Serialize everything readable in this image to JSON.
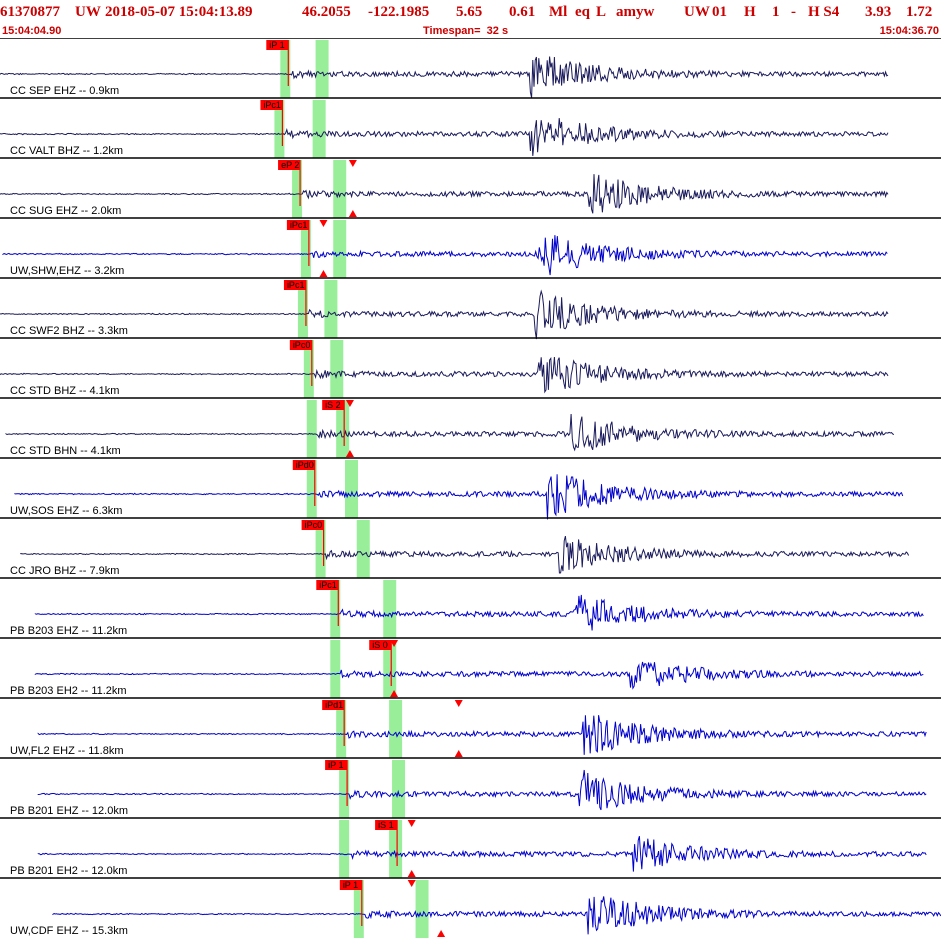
{
  "header": {
    "event_id": "61370877",
    "network": "UW",
    "datetime": "2018-05-07 15:04:13.89",
    "lat": "46.2055",
    "lon": "-122.1985",
    "depth": "5.65",
    "magnitude": "0.61",
    "mag_type": "Ml",
    "event_type": "eq",
    "location_flag": "L",
    "analyst": "amyw",
    "auth_net": "UW",
    "version": "01",
    "quality": "H",
    "count": "1",
    "dash": "-",
    "solution": "H S4",
    "v1": "3.93",
    "v2": "1.72",
    "start_time": "15:04:04.90",
    "timespan": "Timespan=  32 s",
    "end_time": "15:04:36.70"
  },
  "colors": {
    "header": "#cc0000",
    "trace_blue": "#0000cc",
    "trace_dark": "#1a1a5c",
    "pick_flag": "#ff0000",
    "window": "#99ee99",
    "grid": "#000000"
  },
  "chart_data": {
    "type": "seismogram",
    "x_unit": "s",
    "x_range": [
      0,
      32
    ],
    "traces": [
      {
        "label": "CC SEP EHZ -- 0.9km",
        "color": "dark",
        "start": 0.0,
        "end": 30.2,
        "p": 9.6,
        "s": 10.8,
        "arrival": 18.0,
        "amp": 1.0,
        "pick": "iP 1",
        "s_label": "",
        "markers": []
      },
      {
        "label": "CC VALT BHZ -- 1.2km",
        "color": "dark",
        "start": 0.0,
        "end": 30.2,
        "p": 9.4,
        "s": 10.7,
        "arrival": 18.0,
        "amp": 1.0,
        "pick": "iPc1",
        "s_label": "",
        "markers": []
      },
      {
        "label": "CC SUG EHZ -- 2.0km",
        "color": "dark",
        "start": 0.0,
        "end": 30.2,
        "p": 10.0,
        "s": 11.4,
        "arrival": 20.0,
        "amp": 0.9,
        "pick": "eP 2",
        "s_label": "",
        "markers": [
          {
            "t": 12.0,
            "dir": "down"
          },
          {
            "t": 12.0,
            "dir": "up"
          }
        ]
      },
      {
        "label": "UW,SHW,EHZ -- 3.2km",
        "color": "blue",
        "start": 0.1,
        "end": 30.2,
        "p": 10.3,
        "s": 11.4,
        "arrival": 18.3,
        "amp": 1.0,
        "pick": "iPc1",
        "s_label": "",
        "markers": [
          {
            "t": 11.0,
            "dir": "down"
          },
          {
            "t": 11.0,
            "dir": "up"
          }
        ]
      },
      {
        "label": "CC SWF2 BHZ -- 3.3km",
        "color": "dark",
        "start": 0.0,
        "end": 30.2,
        "p": 10.2,
        "s": 11.1,
        "arrival": 18.2,
        "amp": 1.0,
        "pick": "iPc1",
        "s_label": "",
        "markers": []
      },
      {
        "label": "CC STD BHZ -- 4.1km",
        "color": "dark",
        "start": 0.0,
        "end": 30.2,
        "p": 10.4,
        "s": 11.3,
        "arrival": 18.3,
        "amp": 0.9,
        "pick": "iPc0",
        "s_label": "",
        "markers": []
      },
      {
        "label": "CC STD BHN -- 4.1km",
        "color": "dark",
        "start": 0.2,
        "end": 30.4,
        "p": 10.5,
        "s": 11.5,
        "arrival": 19.4,
        "amp": 0.9,
        "pick": "",
        "s_label": "iS 2",
        "markers": [
          {
            "t": 11.9,
            "dir": "down"
          },
          {
            "t": 11.9,
            "dir": "up"
          }
        ]
      },
      {
        "label": "UW,SOS EHZ -- 6.3km",
        "color": "blue",
        "start": 0.5,
        "end": 30.7,
        "p": 10.5,
        "s": 11.8,
        "arrival": 18.6,
        "amp": 1.0,
        "pick": "iPd0",
        "s_label": "",
        "markers": []
      },
      {
        "label": "CC JRO BHZ -- 7.9km",
        "color": "dark",
        "start": 0.7,
        "end": 30.9,
        "p": 10.8,
        "s": 12.2,
        "arrival": 19.0,
        "amp": 0.8,
        "pick": "iPc0",
        "s_label": "",
        "markers": []
      },
      {
        "label": "PB B203 EHZ -- 11.2km",
        "color": "blue",
        "start": 1.2,
        "end": 31.4,
        "p": 11.3,
        "s": 13.1,
        "arrival": 19.5,
        "amp": 0.9,
        "pick": "iPc1",
        "s_label": "",
        "markers": []
      },
      {
        "label": "PB B203 EH2 -- 11.2km",
        "color": "blue",
        "start": 1.2,
        "end": 31.4,
        "p": 11.3,
        "s": 13.1,
        "arrival": 21.4,
        "amp": 0.7,
        "pick": "",
        "s_label": "iS 0",
        "markers": [
          {
            "t": 13.4,
            "dir": "down"
          },
          {
            "t": 13.4,
            "dir": "up"
          }
        ]
      },
      {
        "label": "UW,FL2 EHZ -- 11.8km",
        "color": "blue",
        "start": 1.3,
        "end": 31.5,
        "p": 11.5,
        "s": 13.3,
        "arrival": 19.8,
        "amp": 1.0,
        "pick": "iPd1",
        "s_label": "",
        "markers": [
          {
            "t": 15.6,
            "dir": "down"
          },
          {
            "t": 15.6,
            "dir": "up"
          }
        ]
      },
      {
        "label": "PB B201 EHZ -- 12.0km",
        "color": "blue",
        "start": 1.3,
        "end": 31.5,
        "p": 11.6,
        "s": 13.4,
        "arrival": 19.7,
        "amp": 1.0,
        "pick": "iP 1",
        "s_label": "",
        "markers": []
      },
      {
        "label": "PB B201 EH2 -- 12.0km",
        "color": "blue",
        "start": 1.3,
        "end": 31.5,
        "p": 11.6,
        "s": 13.3,
        "arrival": 21.5,
        "amp": 0.8,
        "pick": "",
        "s_label": "iS 1",
        "markers": [
          {
            "t": 14.0,
            "dir": "down"
          },
          {
            "t": 14.0,
            "dir": "up"
          }
        ]
      },
      {
        "label": "UW,CDF EHZ -- 15.3km",
        "color": "blue",
        "start": 1.8,
        "end": 32.0,
        "p": 12.1,
        "s": 14.2,
        "arrival": 20.0,
        "amp": 1.0,
        "pick": "iP 1",
        "s_label": "",
        "markers": [
          {
            "t": 14.0,
            "dir": "down"
          },
          {
            "t": 15.0,
            "dir": "up"
          }
        ]
      }
    ]
  }
}
